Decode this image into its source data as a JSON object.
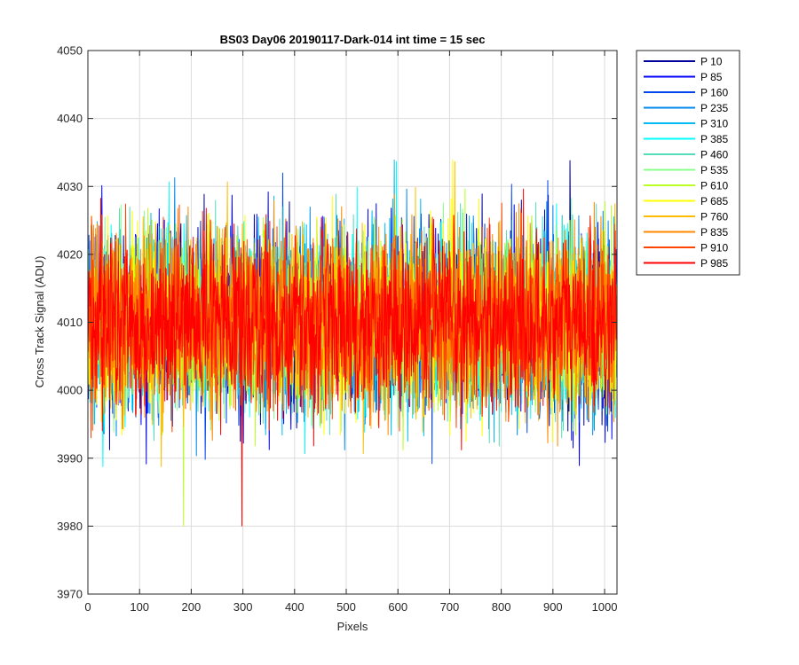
{
  "chart_data": {
    "type": "line",
    "title": "BS03 Day06 20190117-Dark-014 int time = 15 sec",
    "xlabel": "Pixels",
    "ylabel": "Cross Track Signal (ADU)",
    "xlim": [
      0,
      1024
    ],
    "ylim": [
      3970,
      4050
    ],
    "xticks": [
      0,
      100,
      200,
      300,
      400,
      500,
      600,
      700,
      800,
      900,
      1000
    ],
    "yticks": [
      3970,
      3980,
      3990,
      4000,
      4010,
      4020,
      4030,
      4040,
      4050
    ],
    "grid": true,
    "legend_position": "outside-top-right",
    "num_points": 1024,
    "mean_signal": 4010,
    "signal_spread": 15,
    "series": [
      {
        "name": "P 10",
        "color": "#00009f"
      },
      {
        "name": "P 85",
        "color": "#0000ff"
      },
      {
        "name": "P 160",
        "color": "#0044ee"
      },
      {
        "name": "P 235",
        "color": "#0088ee"
      },
      {
        "name": "P 310",
        "color": "#00bbf4"
      },
      {
        "name": "P 385",
        "color": "#00ffff"
      },
      {
        "name": "P 460",
        "color": "#55ddbb"
      },
      {
        "name": "P 535",
        "color": "#88ff88"
      },
      {
        "name": "P 610",
        "color": "#bbff22"
      },
      {
        "name": "P 685",
        "color": "#ffff00"
      },
      {
        "name": "P 760",
        "color": "#ffbb00"
      },
      {
        "name": "P 835",
        "color": "#ff8800"
      },
      {
        "name": "P 910",
        "color": "#ff4400"
      },
      {
        "name": "P 985",
        "color": "#ff0000"
      }
    ]
  }
}
